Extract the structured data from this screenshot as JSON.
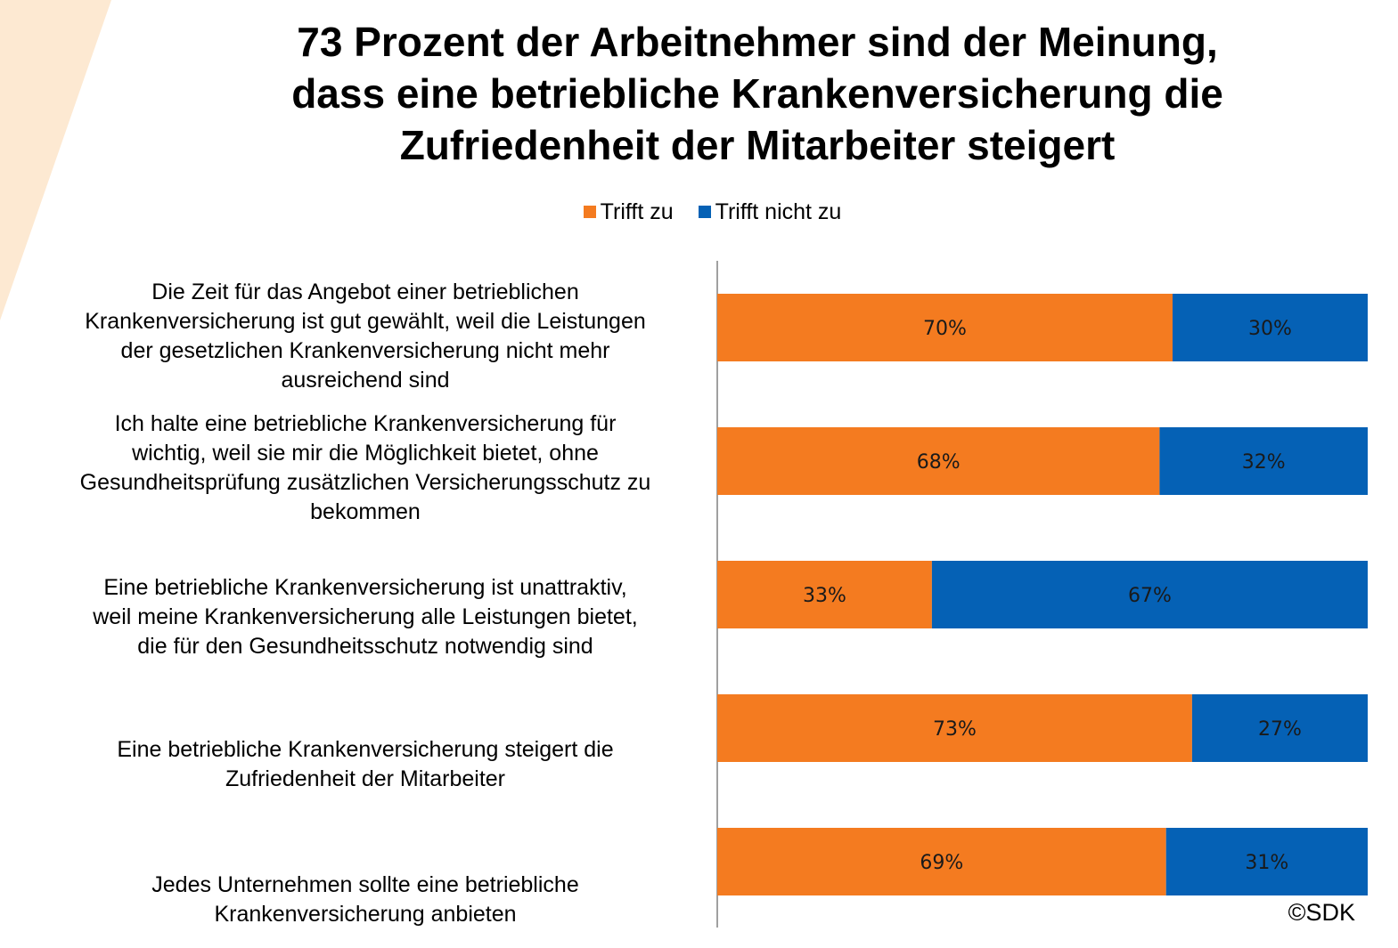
{
  "title": {
    "lines": [
      "73 Prozent der Arbeitnehmer sind der Meinung,",
      "dass eine betriebliche Krankenversicherung die",
      "Zufriedenheit der Mitarbeiter steigert"
    ]
  },
  "copyright": "©SDK",
  "colors": {
    "trifft_zu": "#F47B20",
    "trifft_nicht_zu": "#0561B5",
    "axis": "#808080",
    "decor": "#FDE9D2"
  },
  "chart_data": {
    "type": "bar",
    "orientation": "horizontal",
    "stacked": "100%",
    "title": "73 Prozent der Arbeitnehmer sind der Meinung, dass eine betriebliche Krankenversicherung die Zufriedenheit der Mitarbeiter steigert",
    "legend_position": "top",
    "grid": false,
    "xlim": [
      0,
      100
    ],
    "unit": "%",
    "categories": [
      [
        "Die Zeit für das Angebot einer betrieblichen",
        "Krankenversicherung ist gut gewählt, weil die Leistungen",
        "der gesetzlichen Krankenversicherung nicht mehr",
        "ausreichend sind"
      ],
      [
        "Ich halte eine betriebliche Krankenversicherung für",
        "wichtig, weil sie mir die Möglichkeit bietet, ohne",
        "Gesundheitsprüfung zusätzlichen Versicherungsschutz zu",
        "bekommen"
      ],
      [
        "Eine betriebliche Krankenversicherung ist unattraktiv,",
        "weil meine Krankenversicherung alle Leistungen bietet,",
        "die für den Gesundheitsschutz notwendig sind"
      ],
      [
        "Eine betriebliche Krankenversicherung steigert die",
        "Zufriedenheit der Mitarbeiter"
      ],
      [
        "Jedes Unternehmen sollte eine betriebliche",
        "Krankenversicherung anbieten"
      ]
    ],
    "series": [
      {
        "name": "Trifft zu",
        "color": "#F47B20",
        "values": [
          70,
          68,
          33,
          73,
          69
        ],
        "labels": [
          "70%",
          "68%",
          "33%",
          "73%",
          "69%"
        ]
      },
      {
        "name": "Trifft nicht zu",
        "color": "#0561B5",
        "values": [
          30,
          32,
          67,
          27,
          31
        ],
        "labels": [
          "30%",
          "32%",
          "67%",
          "27%",
          "31%"
        ]
      }
    ]
  }
}
